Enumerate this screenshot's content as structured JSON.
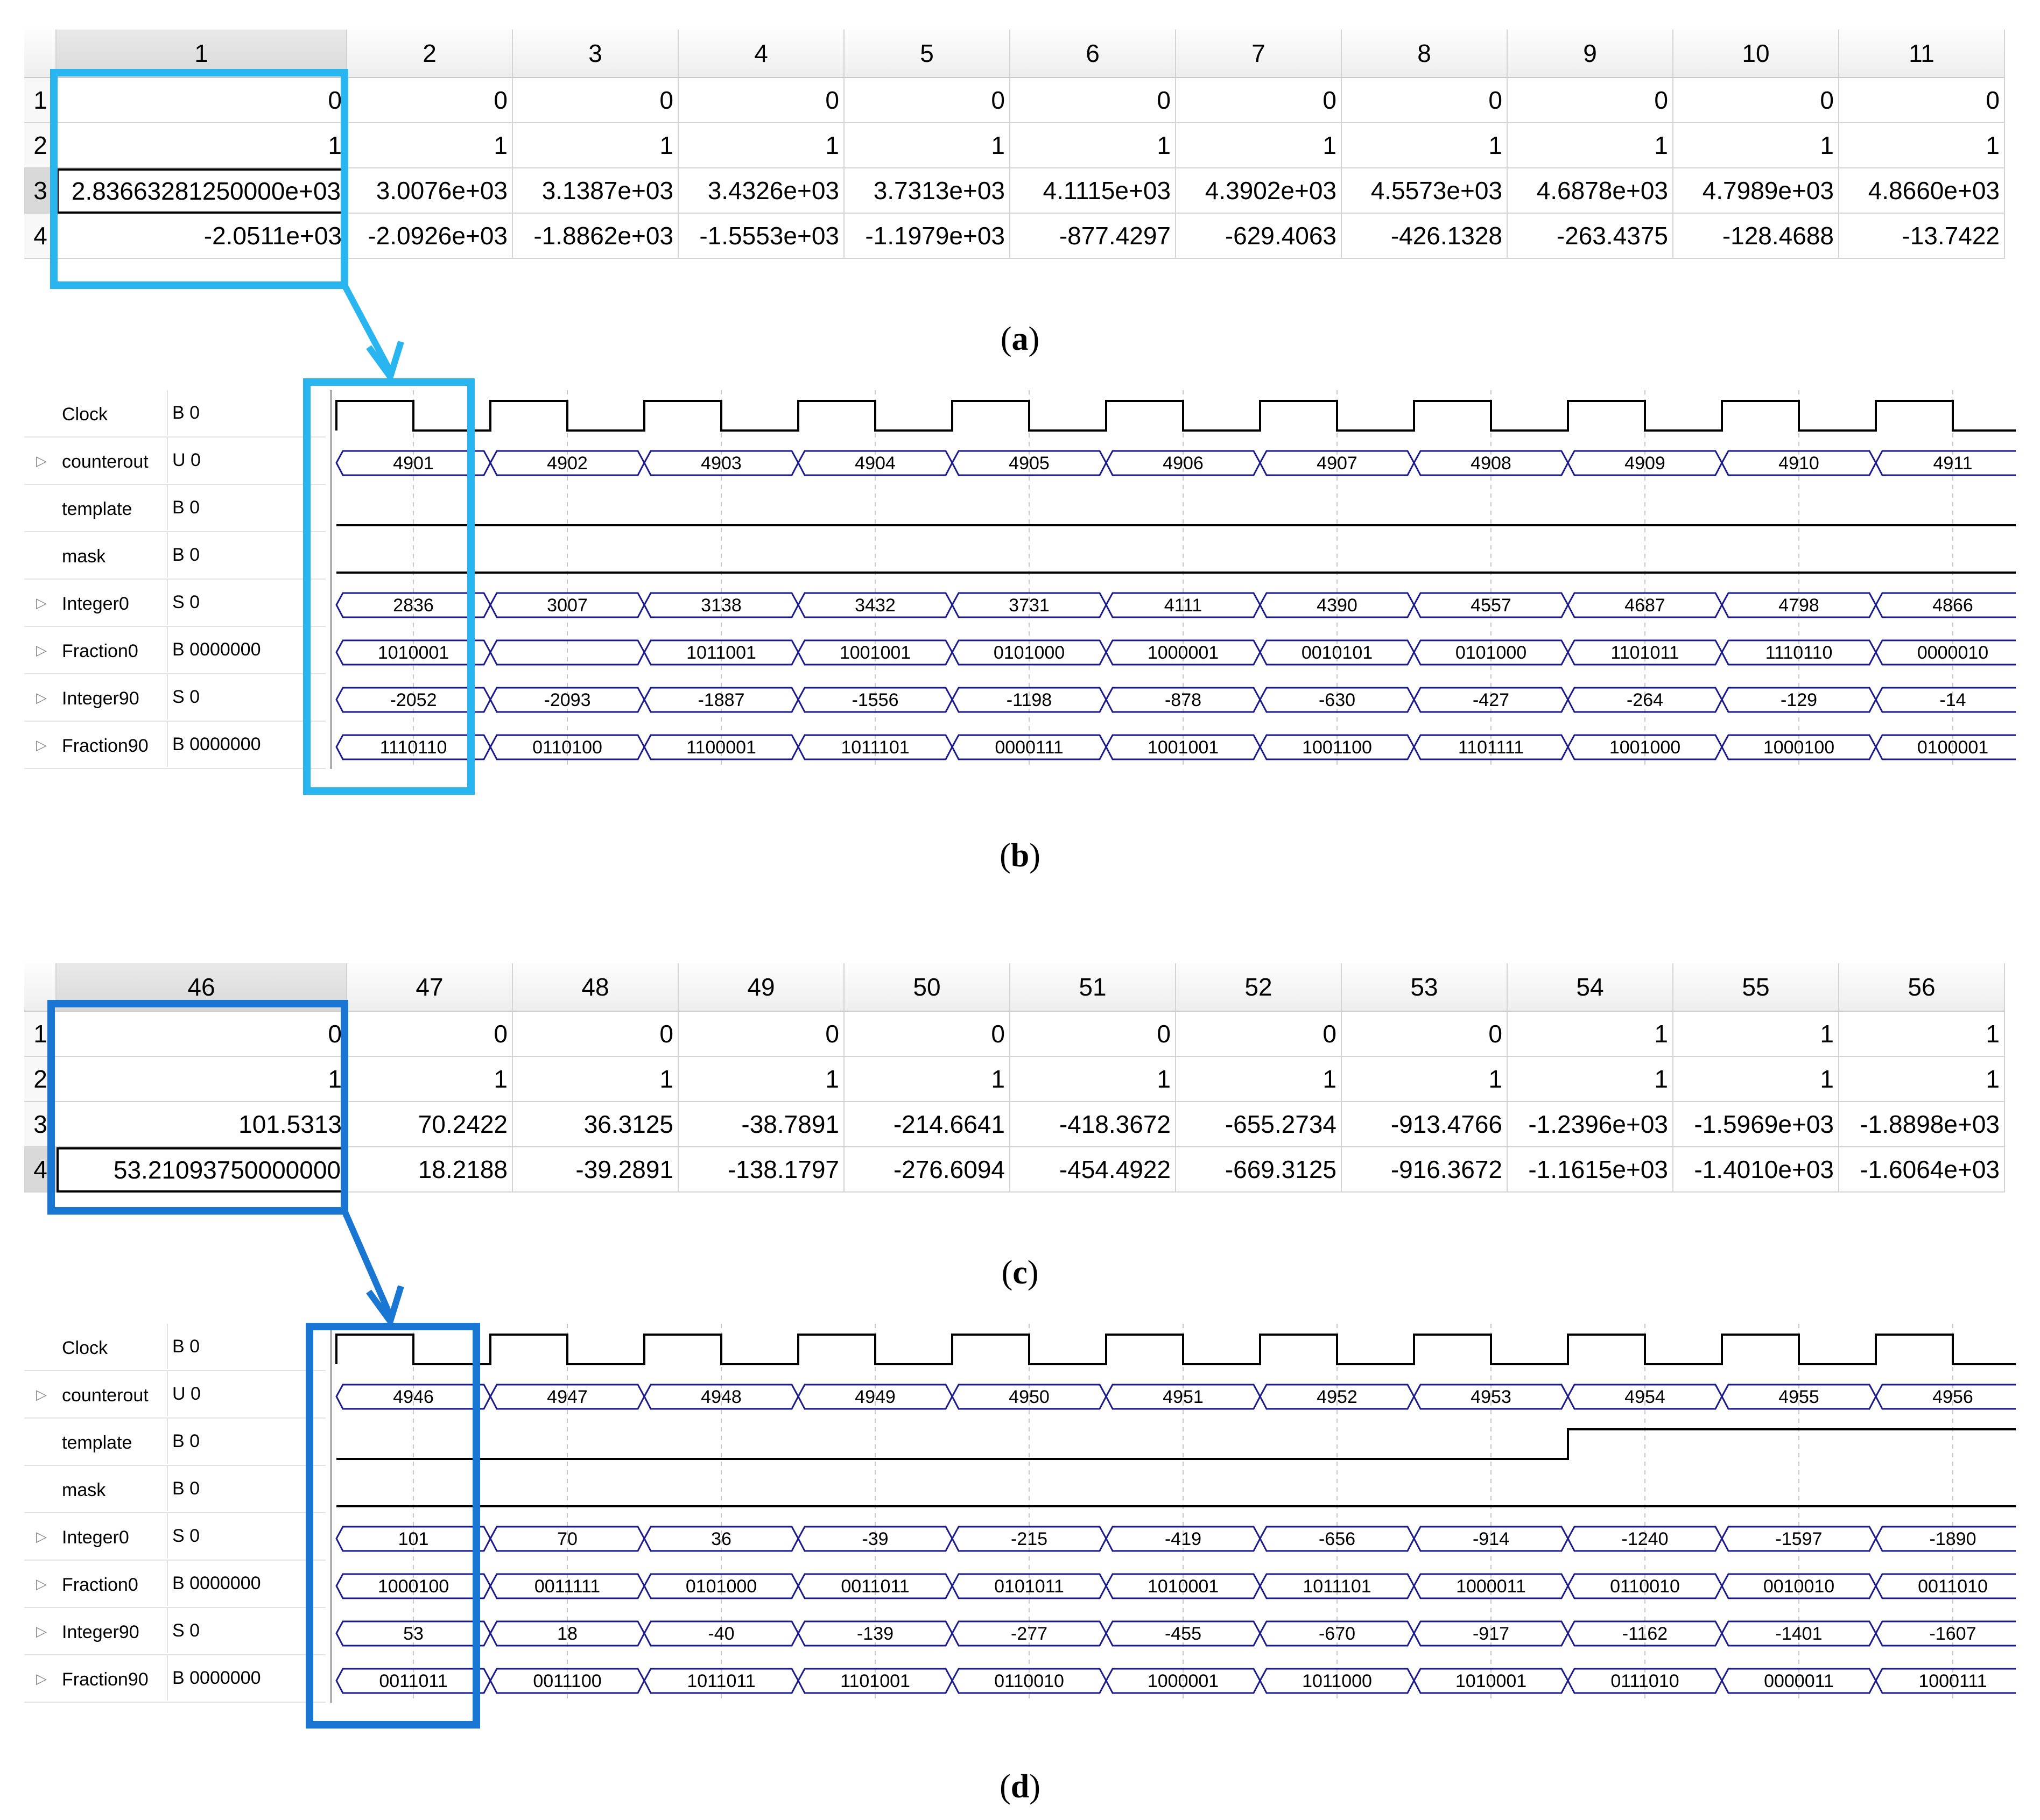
{
  "panels": [
    {
      "caption": "a",
      "sheet": {
        "columns": [
          "1",
          "2",
          "3",
          "4",
          "5",
          "6",
          "7",
          "8",
          "9",
          "10",
          "11"
        ],
        "row_labels": [
          "1",
          "2",
          "3",
          "4"
        ],
        "rows": [
          [
            "0",
            "0",
            "0",
            "0",
            "0",
            "0",
            "0",
            "0",
            "0",
            "0",
            "0"
          ],
          [
            "1",
            "1",
            "1",
            "1",
            "1",
            "1",
            "1",
            "1",
            "1",
            "1",
            "1"
          ],
          [
            "2.83663281250000e+03",
            "3.0076e+03",
            "3.1387e+03",
            "3.4326e+03",
            "3.7313e+03",
            "4.1115e+03",
            "4.3902e+03",
            "4.5573e+03",
            "4.6878e+03",
            "4.7989e+03",
            "4.8660e+03"
          ],
          [
            "-2.0511e+03",
            "-2.0926e+03",
            "-1.8862e+03",
            "-1.5553e+03",
            "-1.1979e+03",
            "-877.4297",
            "-629.4063",
            "-426.1328",
            "-263.4375",
            "-128.4688",
            "-13.7422"
          ]
        ],
        "active_row": 2,
        "highlight_color": "#29b6f0"
      }
    },
    {
      "caption": "b",
      "wave": {
        "highlight_color": "#29b6f0",
        "signals": [
          {
            "name": "Clock",
            "radix": "B 0",
            "kind": "clock"
          },
          {
            "name": "counterout",
            "radix": "U 0",
            "kind": "bus",
            "expand": true,
            "values": [
              "4901",
              "4902",
              "4903",
              "4904",
              "4905",
              "4906",
              "4907",
              "4908",
              "4909",
              "4910",
              "4911"
            ]
          },
          {
            "name": "template",
            "radix": "B 0",
            "kind": "level",
            "level": 0
          },
          {
            "name": "mask",
            "radix": "B 0",
            "kind": "level",
            "level": 0
          },
          {
            "name": "Integer0",
            "radix": "S 0",
            "kind": "bus",
            "expand": true,
            "values": [
              "2836",
              "3007",
              "3138",
              "3432",
              "3731",
              "4111",
              "4390",
              "4557",
              "4687",
              "4798",
              "4866"
            ]
          },
          {
            "name": "Fraction0",
            "radix": "B 0000000",
            "kind": "bus",
            "expand": true,
            "values": [
              "1010001",
              "",
              "1011001",
              "1001001",
              "0101000",
              "1000001",
              "0010101",
              "0101000",
              "1101011",
              "1110110",
              "0000010"
            ]
          },
          {
            "name": "Integer90",
            "radix": "S 0",
            "kind": "bus",
            "expand": true,
            "values": [
              "-2052",
              "-2093",
              "-1887",
              "-1556",
              "-1198",
              "-878",
              "-630",
              "-427",
              "-264",
              "-129",
              "-14"
            ]
          },
          {
            "name": "Fraction90",
            "radix": "B 0000000",
            "kind": "bus",
            "expand": true,
            "values": [
              "1110110",
              "0110100",
              "1100001",
              "1011101",
              "0000111",
              "1001001",
              "1001100",
              "1101111",
              "1001000",
              "1000100",
              "0100001"
            ]
          }
        ]
      }
    },
    {
      "caption": "c",
      "sheet": {
        "columns": [
          "46",
          "47",
          "48",
          "49",
          "50",
          "51",
          "52",
          "53",
          "54",
          "55",
          "56"
        ],
        "row_labels": [
          "1",
          "2",
          "3",
          "4"
        ],
        "rows": [
          [
            "0",
            "0",
            "0",
            "0",
            "0",
            "0",
            "0",
            "0",
            "1",
            "1",
            "1"
          ],
          [
            "1",
            "1",
            "1",
            "1",
            "1",
            "1",
            "1",
            "1",
            "1",
            "1",
            "1"
          ],
          [
            "101.5313",
            "70.2422",
            "36.3125",
            "-38.7891",
            "-214.6641",
            "-418.3672",
            "-655.2734",
            "-913.4766",
            "-1.2396e+03",
            "-1.5969e+03",
            "-1.8898e+03"
          ],
          [
            "53.21093750000000",
            "18.2188",
            "-39.2891",
            "-138.1797",
            "-276.6094",
            "-454.4922",
            "-669.3125",
            "-916.3672",
            "-1.1615e+03",
            "-1.4010e+03",
            "-1.6064e+03"
          ]
        ],
        "active_row": 3,
        "highlight_color": "#1976d2"
      }
    },
    {
      "caption": "d",
      "wave": {
        "highlight_color": "#1976d2",
        "signals": [
          {
            "name": "Clock",
            "radix": "B 0",
            "kind": "clock"
          },
          {
            "name": "counterout",
            "radix": "U 0",
            "kind": "bus",
            "expand": true,
            "values": [
              "4946",
              "4947",
              "4948",
              "4949",
              "4950",
              "4951",
              "4952",
              "4953",
              "4954",
              "4955",
              "4956"
            ]
          },
          {
            "name": "template",
            "radix": "B 0",
            "kind": "step",
            "step_at": 8
          },
          {
            "name": "mask",
            "radix": "B 0",
            "kind": "level",
            "level": 0
          },
          {
            "name": "Integer0",
            "radix": "S 0",
            "kind": "bus",
            "expand": true,
            "values": [
              "101",
              "70",
              "36",
              "-39",
              "-215",
              "-419",
              "-656",
              "-914",
              "-1240",
              "-1597",
              "-1890"
            ]
          },
          {
            "name": "Fraction0",
            "radix": "B 0000000",
            "kind": "bus",
            "expand": true,
            "values": [
              "1000100",
              "0011111",
              "0101000",
              "0011011",
              "0101011",
              "1010001",
              "1011101",
              "1000011",
              "0110010",
              "0010010",
              "0011010"
            ]
          },
          {
            "name": "Integer90",
            "radix": "S 0",
            "kind": "bus",
            "expand": true,
            "values": [
              "53",
              "18",
              "-40",
              "-139",
              "-277",
              "-455",
              "-670",
              "-917",
              "-1162",
              "-1401",
              "-1607"
            ]
          },
          {
            "name": "Fraction90",
            "radix": "B 0000000",
            "kind": "bus",
            "expand": true,
            "values": [
              "0011011",
              "0011100",
              "1011011",
              "1101001",
              "0110010",
              "1000001",
              "1011000",
              "1010001",
              "0111010",
              "0000011",
              "1000111"
            ]
          }
        ]
      }
    }
  ]
}
